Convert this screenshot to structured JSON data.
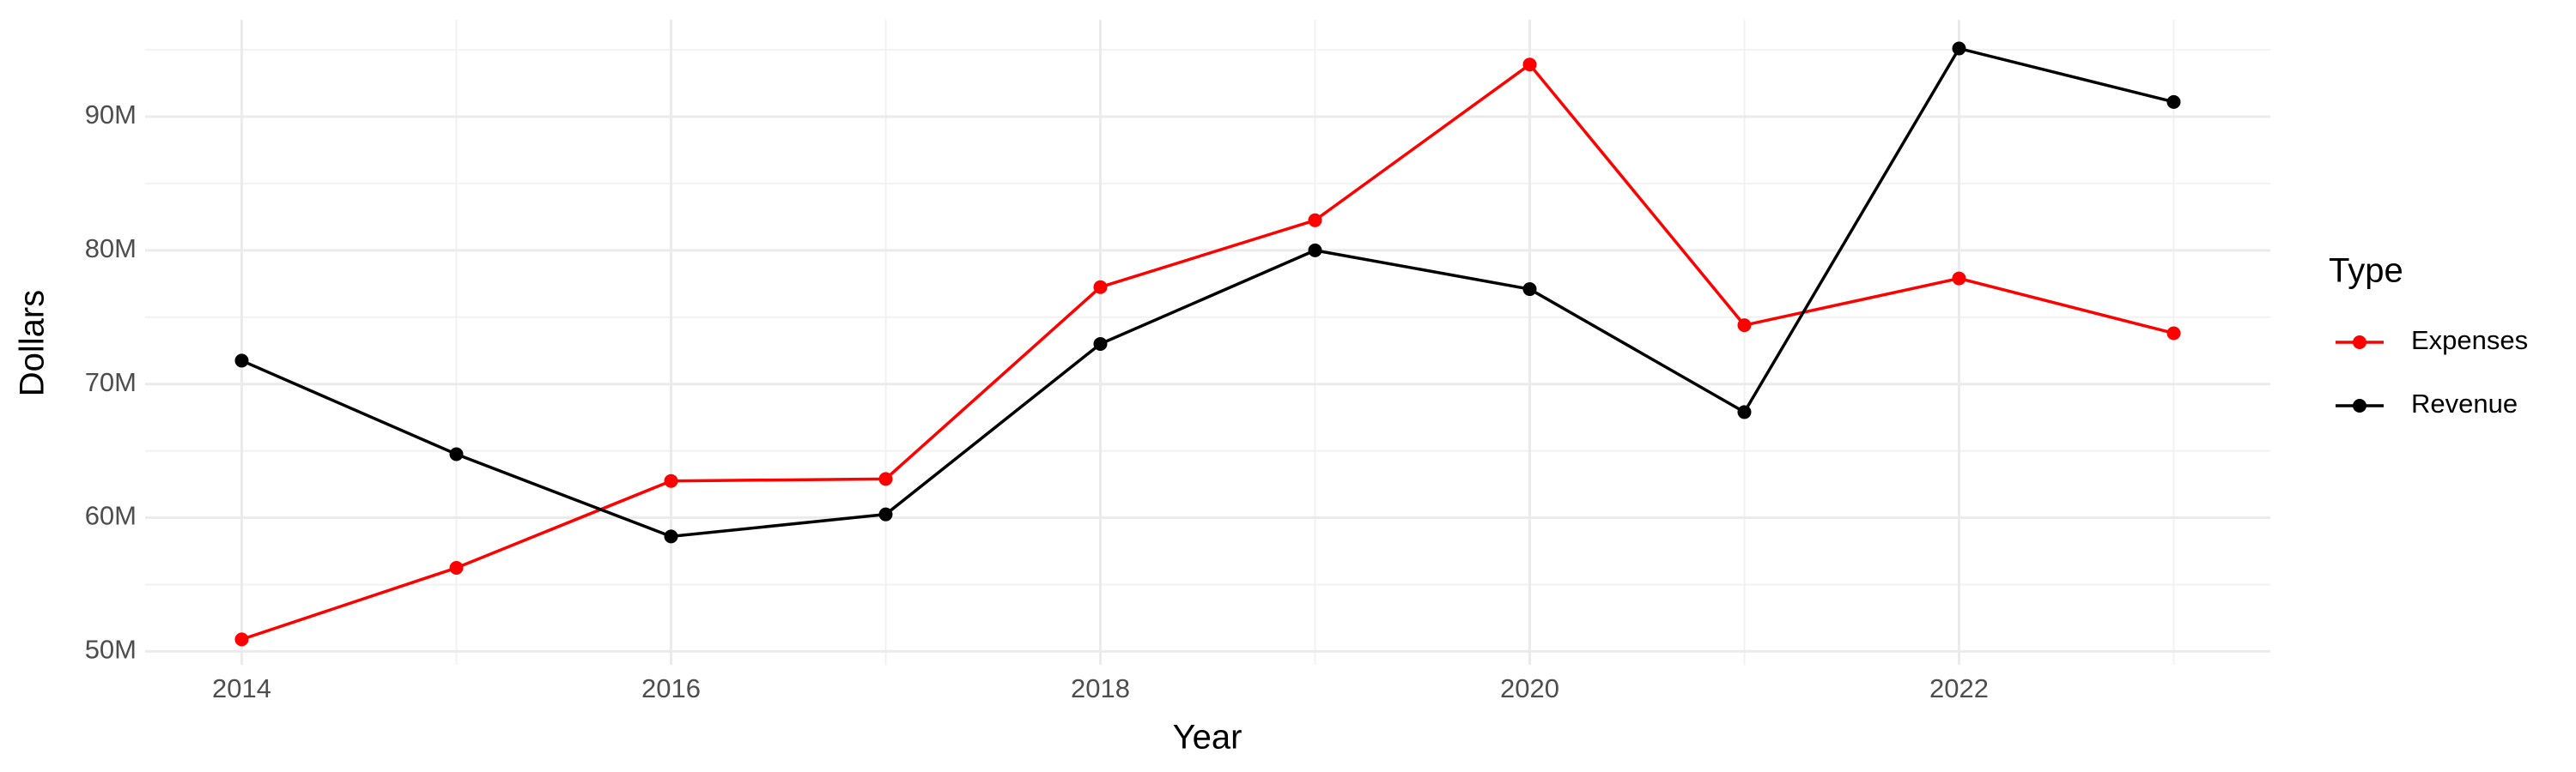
{
  "chart_data": {
    "type": "line",
    "x_label": "Year",
    "y_label": "Dollars",
    "legend_title": "Type",
    "legend": "right",
    "grid": true,
    "x": [
      2014,
      2015,
      2016,
      2017,
      2018,
      2019,
      2020,
      2021,
      2022,
      2023
    ],
    "series": [
      {
        "name": "Expenses",
        "color": "#ff0000",
        "values": [
          50900000,
          56250000,
          62750000,
          62900000,
          77250000,
          82250000,
          93900000,
          74400000,
          77900000,
          73800000
        ]
      },
      {
        "name": "Revenue",
        "color": "#000000",
        "values": [
          71750000,
          64750000,
          58600000,
          60250000,
          73000000,
          80000000,
          77100000,
          67900000,
          95100000,
          91100000
        ]
      }
    ],
    "xlim": [
      2013.55,
      2023.45
    ],
    "xticks": [
      2014,
      2016,
      2018,
      2020,
      2022
    ],
    "ylim": [
      49000000,
      97250000
    ],
    "yticks": [
      {
        "value": 50000000,
        "label": "50M"
      },
      {
        "value": 60000000,
        "label": "60M"
      },
      {
        "value": 70000000,
        "label": "70M"
      },
      {
        "value": 80000000,
        "label": "80M"
      },
      {
        "value": 90000000,
        "label": "90M"
      }
    ]
  }
}
